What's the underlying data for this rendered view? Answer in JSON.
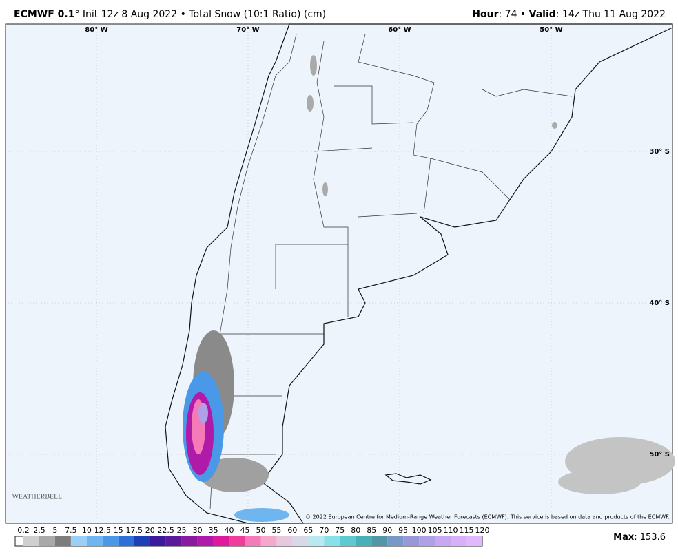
{
  "header": {
    "model": "ECMWF 0.1",
    "title": "° Init 12z 8 Aug 2022 • Total Snow (10:1 Ratio) (cm)",
    "hour_label": "Hour",
    "hour": ": 74 • ",
    "valid_label": "Valid",
    "valid": ": 14z Thu 11 Aug 2022"
  },
  "map": {
    "lon_labels": [
      "80° W",
      "70° W",
      "60° W",
      "50° W"
    ],
    "lat_labels": [
      "30° S",
      "40° S",
      "50° S"
    ],
    "credit": "© 2022 European Centre for Medium-Range Weather Forecasts (ECMWF). This service is based on data and products of the ECMWF.",
    "logo": "WEATHERBELL"
  },
  "legend": {
    "levels": [
      0.2,
      2.5,
      5,
      7.5,
      10,
      12.5,
      15,
      17.5,
      20,
      22.5,
      25,
      30,
      35,
      40,
      45,
      50,
      55,
      60,
      65,
      70,
      75,
      80,
      85,
      90,
      95,
      100,
      105,
      110,
      115,
      120
    ],
    "colors": [
      "#cfcfcf",
      "#a9a9a9",
      "#7d7d7d",
      "#9ad0f5",
      "#6fb6f0",
      "#4a98e8",
      "#2f6fd8",
      "#1f3fb8",
      "#3a1a9a",
      "#5a1a9a",
      "#8a1aa0",
      "#b01aa8",
      "#e0189c",
      "#f03c9c",
      "#f47ab8",
      "#f4a8cc",
      "#e8c8dc",
      "#d8d8e8",
      "#b8e8f0",
      "#88e0e8",
      "#60c8d0",
      "#4ab0b8",
      "#5098a8",
      "#7898c8",
      "#9898d8",
      "#b0a0e8",
      "#c8a8f0",
      "#d8b0f8",
      "#e0b8ff"
    ]
  },
  "max": {
    "label": "Max",
    "value": ": 153.6"
  }
}
